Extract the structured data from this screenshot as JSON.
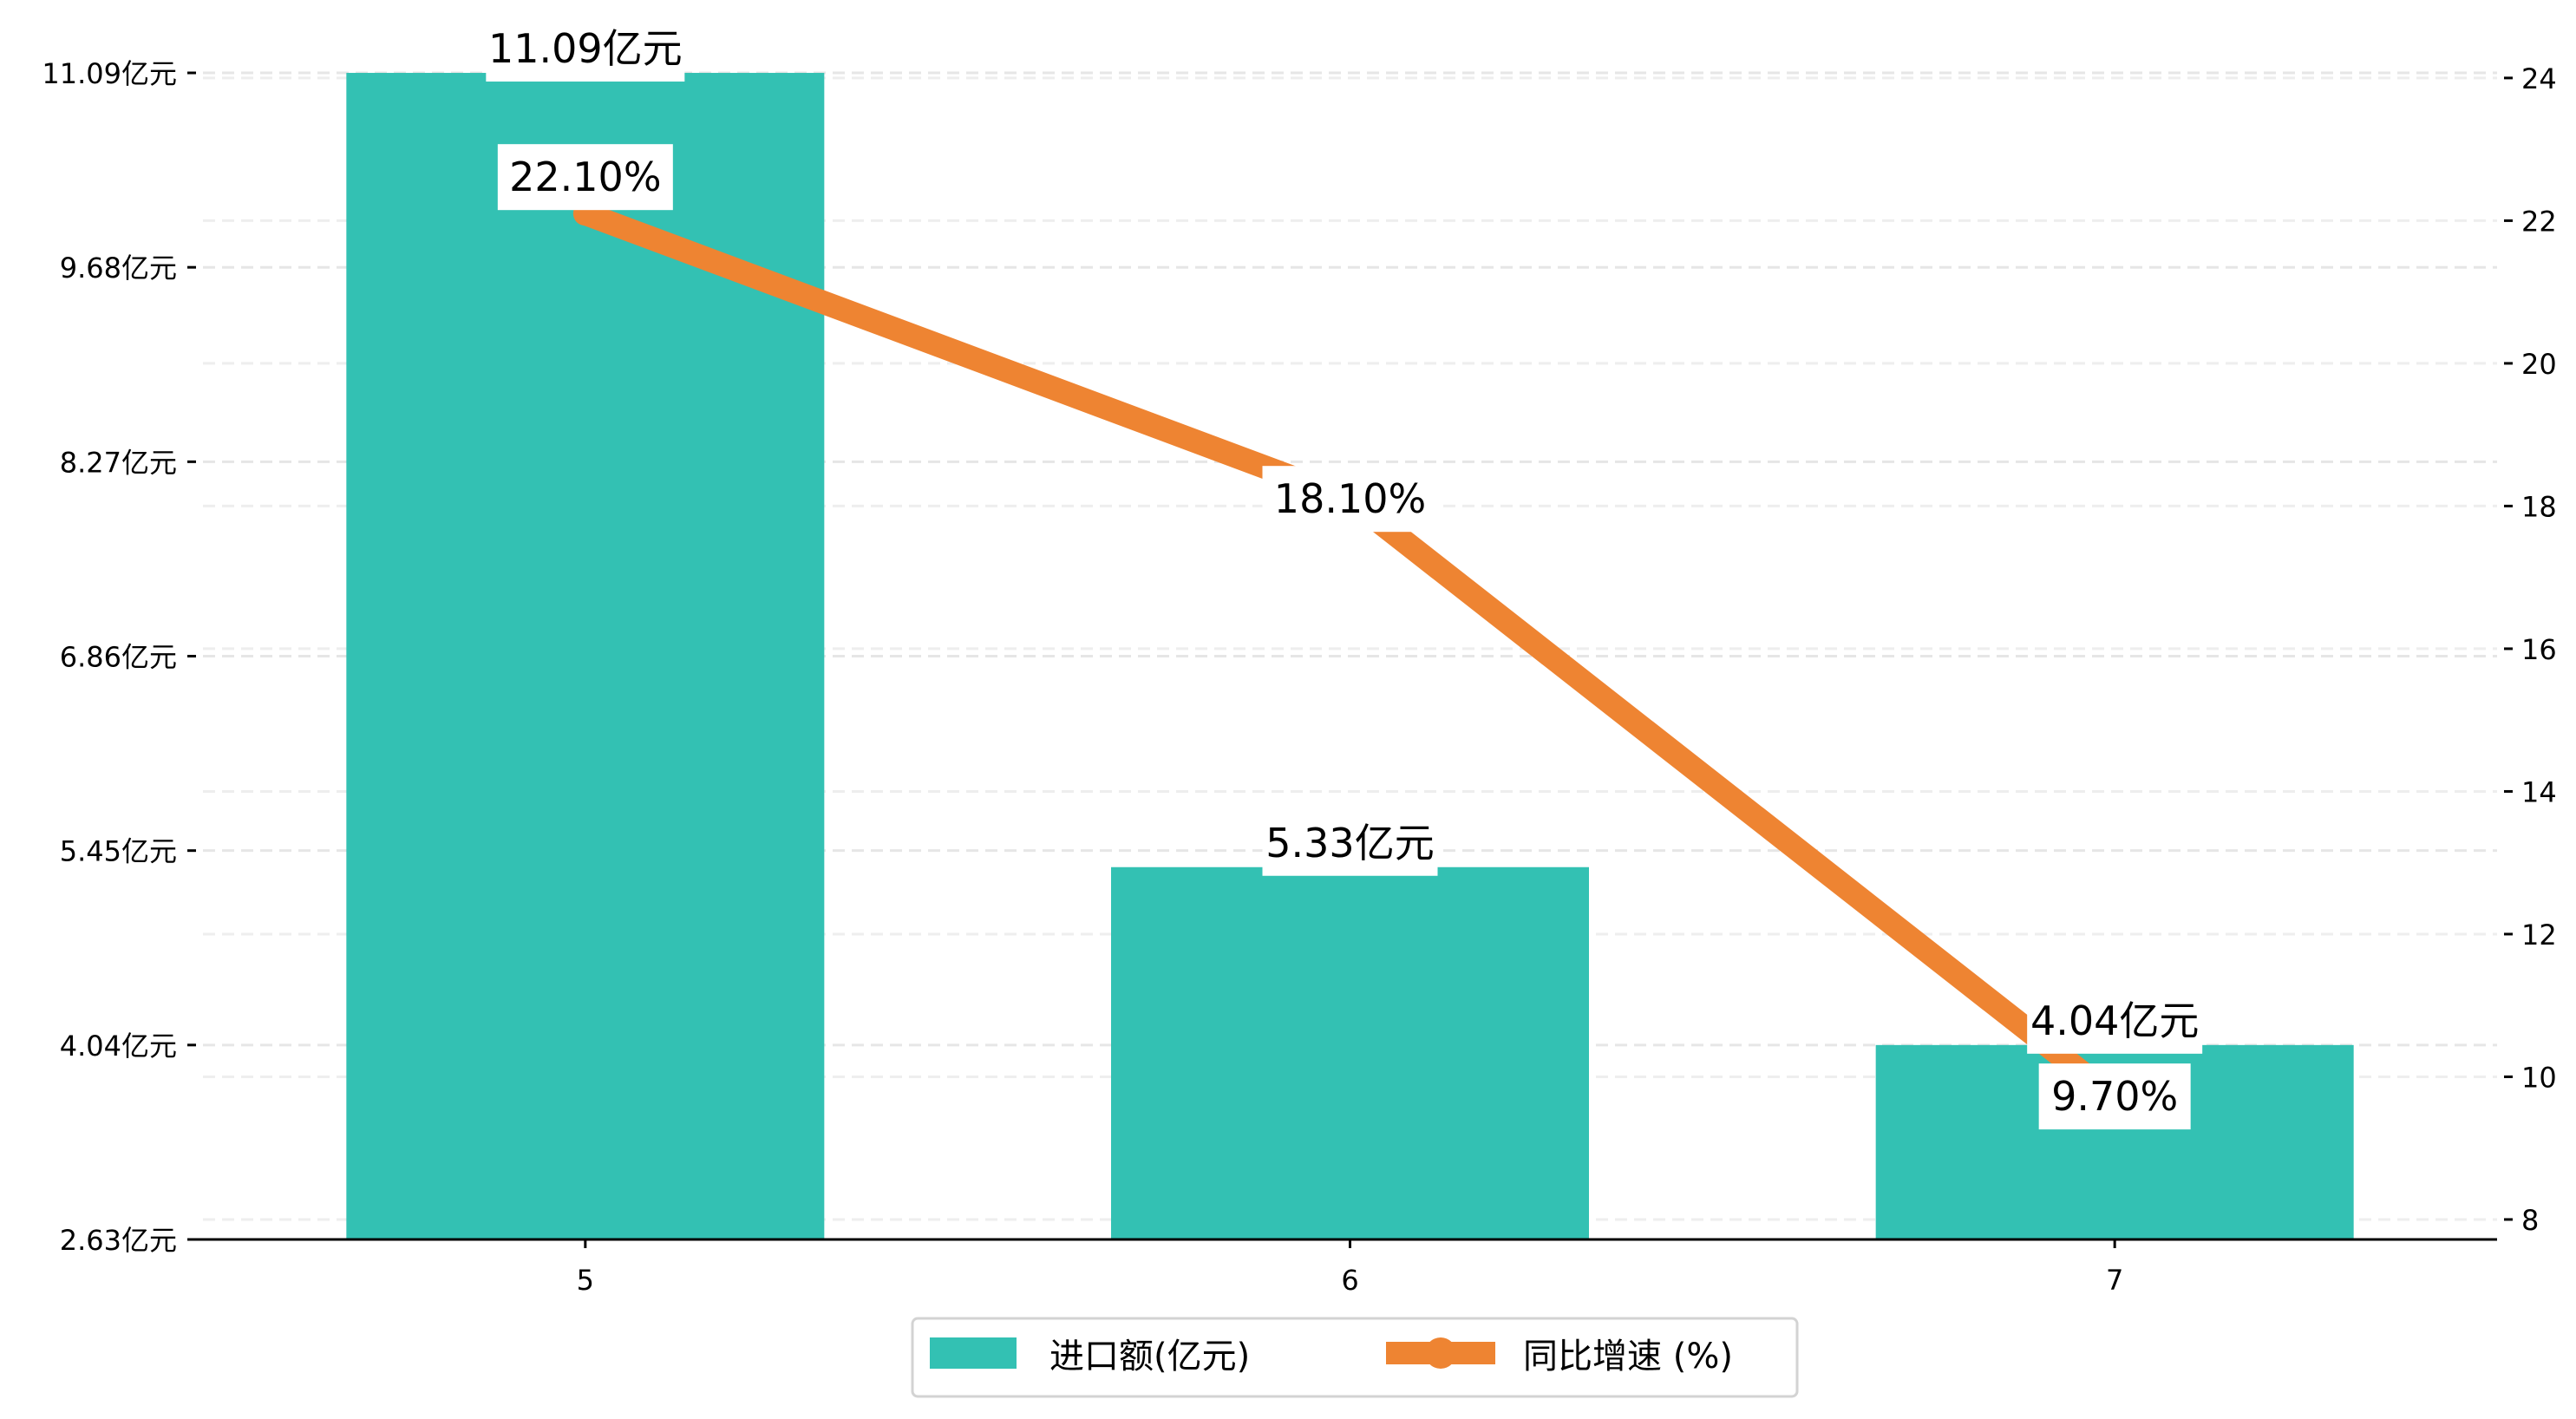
{
  "chart_data": {
    "type": "bar+line",
    "categories": [
      "5",
      "6",
      "7"
    ],
    "series": [
      {
        "name": "进口额(亿元)",
        "axis": "left",
        "type": "bar",
        "values": [
          11.09,
          5.33,
          4.04
        ],
        "labels": [
          "11.09亿元",
          "5.33亿元",
          "4.04亿元"
        ],
        "color": "#1fb8a6"
      },
      {
        "name": "同比增速 (%)",
        "axis": "right",
        "type": "line",
        "values": [
          22.1,
          18.1,
          9.7
        ],
        "labels": [
          "22.10%",
          "18.10%",
          "9.70%"
        ],
        "color": "#ee8432"
      }
    ],
    "left_axis": {
      "ticks": [
        2.63,
        4.04,
        5.45,
        6.86,
        8.27,
        9.68,
        11.09
      ],
      "tick_labels": [
        "2.63亿元",
        "4.04亿元",
        "5.45亿元",
        "6.86亿元",
        "8.27亿元",
        "9.68亿元",
        "11.09亿元"
      ],
      "ylim": [
        2.63,
        11.26
      ]
    },
    "right_axis": {
      "ticks": [
        8,
        10,
        12,
        14,
        16,
        18,
        20,
        22,
        24
      ],
      "tick_labels": [
        "8",
        "10",
        "12",
        "14",
        "16",
        "18",
        "20",
        "22",
        "24"
      ],
      "ylim": [
        7.72,
        24.4
      ]
    },
    "grid": true,
    "legend": {
      "placement": "bottom-center",
      "entries": [
        "进口额(亿元)",
        "同比增速 (%)"
      ]
    }
  }
}
